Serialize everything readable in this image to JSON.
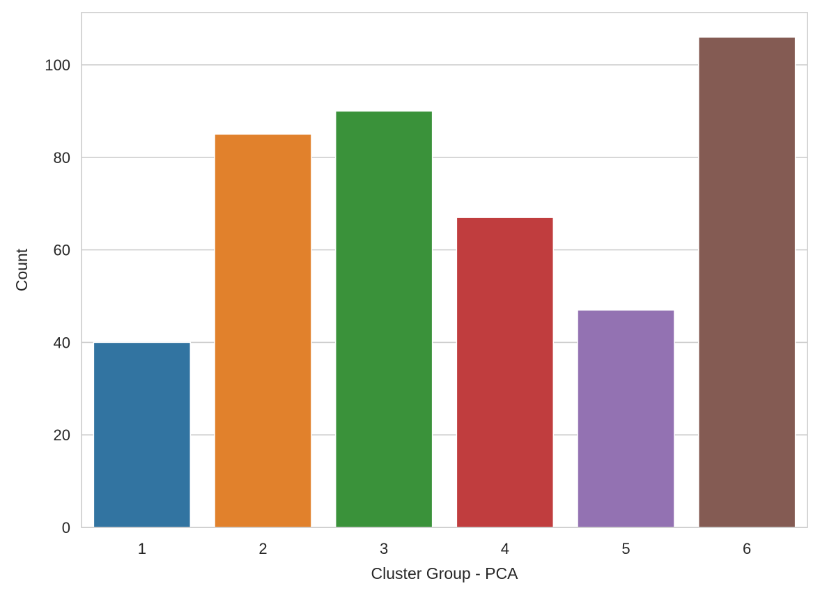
{
  "chart_data": {
    "type": "bar",
    "title": "",
    "xlabel": "Cluster Group - PCA",
    "ylabel": "Count",
    "categories": [
      "1",
      "2",
      "3",
      "4",
      "5",
      "6"
    ],
    "values": [
      40,
      85,
      90,
      67,
      47,
      106
    ],
    "colors": [
      "#3274a1",
      "#e1812c",
      "#3a923a",
      "#c03d3e",
      "#9372b2",
      "#845b53"
    ],
    "ylim": [
      0,
      111.3
    ],
    "yticks": [
      0,
      20,
      40,
      60,
      80,
      100
    ],
    "grid": "horizontal",
    "legend": "none"
  }
}
